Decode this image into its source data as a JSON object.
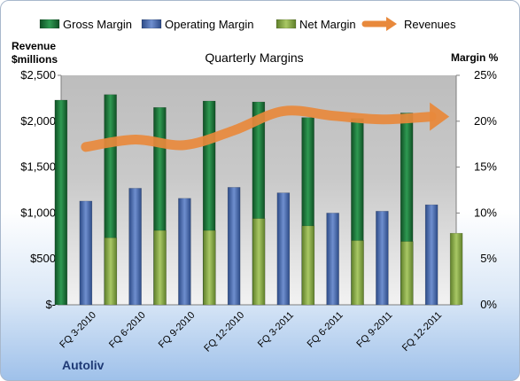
{
  "chart_data": {
    "type": "bar",
    "title": "Quarterly Margins",
    "company": "Autoliv",
    "left_axis": {
      "title_lines": [
        "Revenue",
        "$millions"
      ],
      "range": [
        0,
        2500
      ],
      "ticks": [
        0,
        500,
        1000,
        1500,
        2000,
        2500
      ],
      "tick_labels": [
        "$-",
        "$500",
        "$1,000",
        "$1,500",
        "$2,000",
        "$2,500"
      ]
    },
    "right_axis": {
      "title": "Margin %",
      "range": [
        0,
        25
      ],
      "ticks": [
        0,
        5,
        10,
        15,
        20,
        25
      ],
      "tick_labels": [
        "0%",
        "5%",
        "10%",
        "15%",
        "20%",
        "25%"
      ]
    },
    "categories": [
      "FQ 3-2010",
      "FQ 6-2010",
      "FQ 9-2010",
      "FQ 12-2010",
      "FQ 3-2011",
      "FQ 6-2011",
      "FQ 9-2011",
      "FQ 12-2011"
    ],
    "series": [
      {
        "name": "Gross Margin",
        "axis": "right",
        "color": "#1e7a3c",
        "values": [
          22.3,
          22.9,
          21.5,
          22.2,
          22.1,
          20.4,
          20.3,
          20.9
        ]
      },
      {
        "name": "Operating Margin",
        "axis": "right",
        "color": "#4f6fb0",
        "values": [
          11.3,
          12.7,
          11.6,
          12.8,
          12.2,
          10.0,
          10.2,
          10.9
        ]
      },
      {
        "name": "Net Margin",
        "axis": "right",
        "color": "#8db04a",
        "values": [
          7.3,
          8.1,
          8.1,
          9.4,
          8.6,
          7.0,
          6.9,
          7.8
        ]
      },
      {
        "name": "Revenues",
        "axis": "left",
        "type": "line",
        "color": "#e8893c",
        "values": [
          1720,
          1800,
          1740,
          1900,
          2110,
          2060,
          2020,
          2050
        ]
      }
    ],
    "legend": [
      "Gross Margin",
      "Operating Margin",
      "Net Margin",
      "Revenues"
    ],
    "legend_position": "top",
    "grid": false
  }
}
